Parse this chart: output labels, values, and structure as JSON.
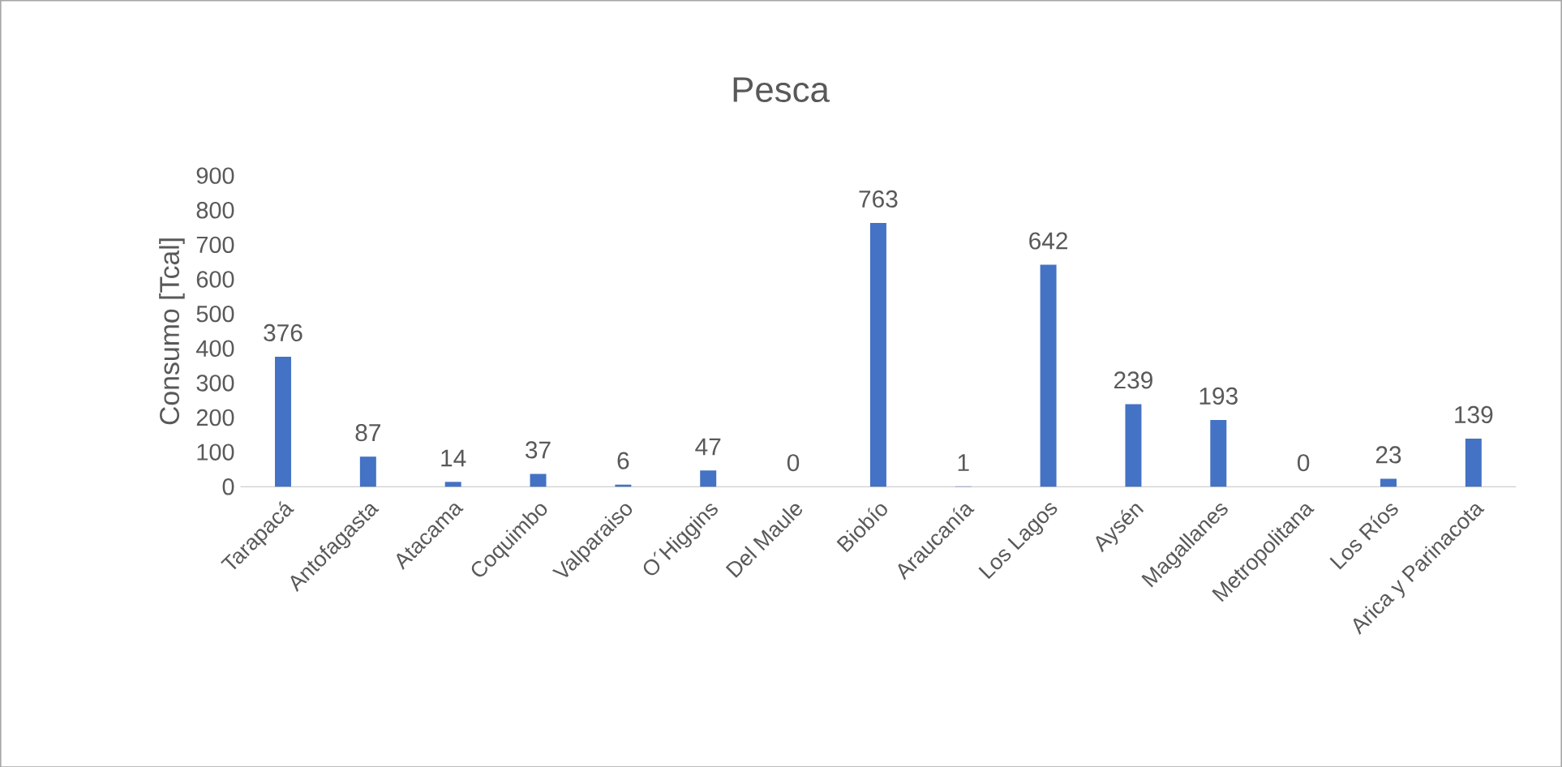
{
  "chart_data": {
    "type": "bar",
    "title": "Pesca",
    "ylabel": "Consumo [Tcal]",
    "categories": [
      "Tarapacá",
      "Antofagasta",
      "Atacama",
      "Coquimbo",
      "Valparaiso",
      "O´Higgins",
      "Del Maule",
      "Biobío",
      "Araucanía",
      "Los Lagos",
      "Aysén",
      "Magallanes",
      "Metropolitana",
      "Los Ríos",
      "Arica y Parinacota"
    ],
    "values": [
      376,
      87,
      14,
      37,
      6,
      47,
      0,
      763,
      1,
      642,
      239,
      193,
      0,
      23,
      139
    ],
    "color": "#4472c4",
    "data_labels": true,
    "ylim": [
      0,
      900
    ],
    "yticks": [
      0,
      100,
      200,
      300,
      400,
      500,
      600,
      700,
      800,
      900
    ]
  }
}
